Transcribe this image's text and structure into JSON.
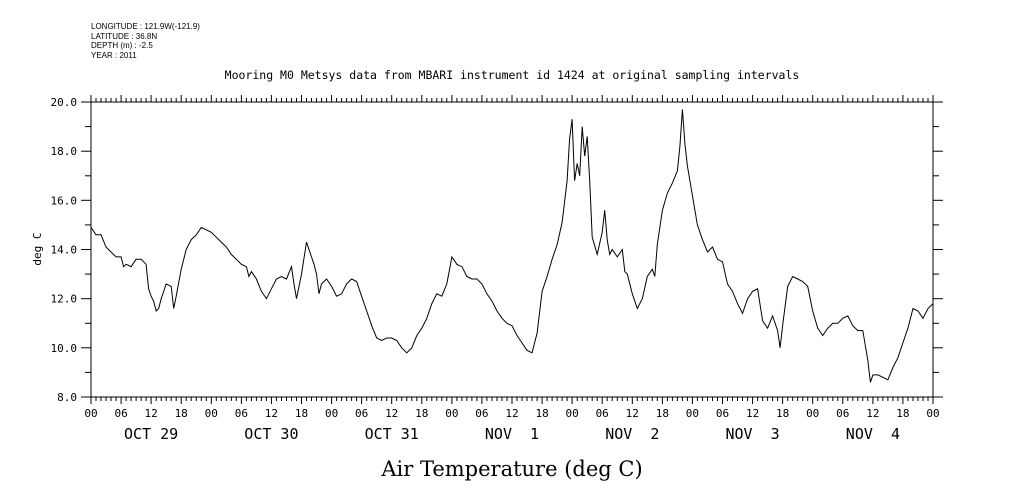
{
  "meta": {
    "longitude": "LONGITUDE : 121.9W(-121.9)",
    "latitude": "LATITUDE : 36.8N",
    "depth": "DEPTH (m) : -2.5",
    "year": "YEAR : 2011"
  },
  "chart_data": {
    "type": "line",
    "title": "Mooring M0 Metsys data from MBARI instrument id 1424 at original sampling intervals",
    "xlabel": "Air Temperature (deg C)",
    "ylabel": "deg C",
    "ylim": [
      8.0,
      20.0
    ],
    "y_ticks": [
      "8.0",
      "10.0",
      "12.0",
      "14.0",
      "16.0",
      "18.0",
      "20.0"
    ],
    "x_range_hours": [
      0,
      168
    ],
    "hour_tick_labels": [
      "00",
      "06",
      "12",
      "18",
      "00",
      "06",
      "12",
      "18",
      "00",
      "06",
      "12",
      "18",
      "00",
      "06",
      "12",
      "18",
      "00",
      "06",
      "12",
      "18",
      "00",
      "06",
      "12",
      "18",
      "00",
      "06",
      "12",
      "18",
      "00"
    ],
    "day_labels": [
      "OCT 29",
      "OCT 30",
      "OCT 31",
      "NOV  1",
      "NOV  2",
      "NOV  3",
      "NOV  4"
    ],
    "series": [
      {
        "name": "Air Temperature",
        "points": [
          [
            0,
            14.9
          ],
          [
            1,
            14.6
          ],
          [
            2,
            14.6
          ],
          [
            3,
            14.1
          ],
          [
            4,
            13.9
          ],
          [
            5,
            13.7
          ],
          [
            6,
            13.7
          ],
          [
            6.5,
            13.3
          ],
          [
            7,
            13.4
          ],
          [
            8,
            13.3
          ],
          [
            9,
            13.6
          ],
          [
            10,
            13.6
          ],
          [
            11,
            13.4
          ],
          [
            11.5,
            12.4
          ],
          [
            12,
            12.1
          ],
          [
            12.5,
            11.9
          ],
          [
            13,
            11.5
          ],
          [
            13.5,
            11.6
          ],
          [
            14,
            12.0
          ],
          [
            15,
            12.6
          ],
          [
            16,
            12.5
          ],
          [
            16.5,
            11.6
          ],
          [
            17,
            12.1
          ],
          [
            18,
            13.2
          ],
          [
            19,
            14.0
          ],
          [
            20,
            14.4
          ],
          [
            21,
            14.6
          ],
          [
            22,
            14.9
          ],
          [
            23,
            14.8
          ],
          [
            24,
            14.7
          ],
          [
            25,
            14.5
          ],
          [
            26,
            14.3
          ],
          [
            27,
            14.1
          ],
          [
            28,
            13.8
          ],
          [
            29,
            13.6
          ],
          [
            30,
            13.4
          ],
          [
            31,
            13.3
          ],
          [
            31.5,
            12.9
          ],
          [
            32,
            13.1
          ],
          [
            33,
            12.8
          ],
          [
            34,
            12.3
          ],
          [
            35,
            12.0
          ],
          [
            36,
            12.4
          ],
          [
            37,
            12.8
          ],
          [
            38,
            12.9
          ],
          [
            39,
            12.8
          ],
          [
            40,
            13.3
          ],
          [
            40.5,
            12.6
          ],
          [
            41,
            12.0
          ],
          [
            42,
            13.0
          ],
          [
            43,
            14.3
          ],
          [
            44,
            13.7
          ],
          [
            44.5,
            13.4
          ],
          [
            45,
            13.0
          ],
          [
            45.5,
            12.2
          ],
          [
            46,
            12.6
          ],
          [
            47,
            12.8
          ],
          [
            48,
            12.5
          ],
          [
            49,
            12.1
          ],
          [
            50,
            12.2
          ],
          [
            51,
            12.6
          ],
          [
            52,
            12.8
          ],
          [
            53,
            12.7
          ],
          [
            54,
            12.1
          ],
          [
            55,
            11.5
          ],
          [
            56,
            10.9
          ],
          [
            57,
            10.4
          ],
          [
            58,
            10.3
          ],
          [
            59,
            10.4
          ],
          [
            60,
            10.4
          ],
          [
            61,
            10.3
          ],
          [
            62,
            10.0
          ],
          [
            63,
            9.8
          ],
          [
            64,
            10.0
          ],
          [
            65,
            10.5
          ],
          [
            66,
            10.8
          ],
          [
            67,
            11.2
          ],
          [
            68,
            11.8
          ],
          [
            69,
            12.2
          ],
          [
            70,
            12.1
          ],
          [
            71,
            12.6
          ],
          [
            72,
            13.7
          ],
          [
            73,
            13.4
          ],
          [
            74,
            13.3
          ],
          [
            75,
            12.9
          ],
          [
            76,
            12.8
          ],
          [
            77,
            12.8
          ],
          [
            78,
            12.6
          ],
          [
            79,
            12.2
          ],
          [
            80,
            11.9
          ],
          [
            81,
            11.5
          ],
          [
            82,
            11.2
          ],
          [
            83,
            11.0
          ],
          [
            84,
            10.9
          ],
          [
            85,
            10.5
          ],
          [
            86,
            10.2
          ],
          [
            87,
            9.9
          ],
          [
            88,
            9.8
          ],
          [
            89,
            10.6
          ],
          [
            90,
            12.3
          ],
          [
            91,
            12.9
          ],
          [
            92,
            13.6
          ],
          [
            93,
            14.2
          ],
          [
            94,
            15.1
          ],
          [
            95,
            16.8
          ],
          [
            95.5,
            18.5
          ],
          [
            96,
            19.3
          ],
          [
            96.5,
            16.8
          ],
          [
            97,
            17.5
          ],
          [
            97.5,
            17.0
          ],
          [
            98,
            19.0
          ],
          [
            98.5,
            17.8
          ],
          [
            99,
            18.6
          ],
          [
            99.5,
            16.8
          ],
          [
            100,
            14.5
          ],
          [
            101,
            13.8
          ],
          [
            102,
            14.7
          ],
          [
            102.5,
            15.6
          ],
          [
            103,
            14.4
          ],
          [
            103.5,
            13.8
          ],
          [
            104,
            14.0
          ],
          [
            105,
            13.7
          ],
          [
            106,
            14.0
          ],
          [
            106.5,
            13.1
          ],
          [
            107,
            13.0
          ],
          [
            108,
            12.2
          ],
          [
            109,
            11.6
          ],
          [
            110,
            12.0
          ],
          [
            111,
            12.9
          ],
          [
            112,
            13.2
          ],
          [
            112.5,
            12.9
          ],
          [
            113,
            14.2
          ],
          [
            114,
            15.6
          ],
          [
            115,
            16.3
          ],
          [
            116,
            16.7
          ],
          [
            117,
            17.2
          ],
          [
            117.5,
            18.2
          ],
          [
            118,
            19.7
          ],
          [
            118.5,
            18.3
          ],
          [
            119,
            17.4
          ],
          [
            120,
            16.2
          ],
          [
            121,
            15.0
          ],
          [
            122,
            14.4
          ],
          [
            123,
            13.9
          ],
          [
            124,
            14.1
          ],
          [
            125,
            13.6
          ],
          [
            126,
            13.5
          ],
          [
            127,
            12.6
          ],
          [
            128,
            12.3
          ],
          [
            129,
            11.8
          ],
          [
            130,
            11.4
          ],
          [
            131,
            12.0
          ],
          [
            132,
            12.3
          ],
          [
            133,
            12.4
          ],
          [
            134,
            11.1
          ],
          [
            135,
            10.8
          ],
          [
            136,
            11.3
          ],
          [
            137,
            10.7
          ],
          [
            137.5,
            10.0
          ],
          [
            138,
            10.9
          ],
          [
            139,
            12.5
          ],
          [
            140,
            12.9
          ],
          [
            141,
            12.8
          ],
          [
            142,
            12.7
          ],
          [
            143,
            12.5
          ],
          [
            144,
            11.5
          ],
          [
            145,
            10.8
          ],
          [
            146,
            10.5
          ],
          [
            147,
            10.8
          ],
          [
            148,
            11.0
          ],
          [
            149,
            11.0
          ],
          [
            150,
            11.2
          ],
          [
            151,
            11.3
          ],
          [
            152,
            10.9
          ],
          [
            153,
            10.7
          ],
          [
            154,
            10.7
          ],
          [
            155,
            9.5
          ],
          [
            155.5,
            8.6
          ],
          [
            156,
            8.9
          ],
          [
            157,
            8.9
          ],
          [
            158,
            8.8
          ],
          [
            159,
            8.7
          ],
          [
            160,
            9.2
          ],
          [
            161,
            9.6
          ],
          [
            162,
            10.2
          ],
          [
            163,
            10.8
          ],
          [
            164,
            11.6
          ],
          [
            165,
            11.5
          ],
          [
            166,
            11.2
          ],
          [
            167,
            11.6
          ],
          [
            168,
            11.8
          ]
        ]
      }
    ]
  }
}
